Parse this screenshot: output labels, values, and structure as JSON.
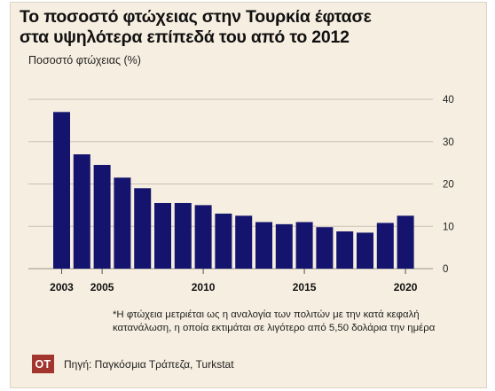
{
  "header": {
    "title_line1": "Το ποσοστό φτώχειας στην Τουρκία έφτασε",
    "title_line2": "στα υψηλότερα επίπεδά του από το 2012",
    "subtitle": "Ποσοστό φτώχειας (%)"
  },
  "footer": {
    "note_line1": "*Η φτώχεια μετριέται ως η αναλογία των πολιτών με την κατά κεφαλή",
    "note_line2": "κατανάλωση, η οποία εκτιμάται σε λιγότερο από 5,50 δολάρια την ημέρα",
    "logo": "OT",
    "source": "Πηγή: Παγκόσμια Τράπεζα, Turkstat"
  },
  "chart_data": {
    "type": "bar",
    "title": "Το ποσοστό φτώχειας στην Τουρκία έφτασε στα υψηλότερα επίπεδά του από το 2012",
    "ylabel": "Ποσοστό φτώχειας (%)",
    "categories": [
      "2003",
      "2004",
      "2005",
      "2006",
      "2007",
      "2008",
      "2009",
      "2010",
      "2011",
      "2012",
      "2013",
      "2014",
      "2015",
      "2016",
      "2017",
      "2018",
      "2019",
      "2020"
    ],
    "values": [
      37,
      27,
      24.5,
      21.5,
      19,
      15.5,
      15.5,
      15,
      13,
      12.5,
      11,
      10.5,
      11,
      9.8,
      8.8,
      8.5,
      10.8,
      12.5
    ],
    "x_tick_labels": [
      "2003",
      "2005",
      "2010",
      "2015",
      "2020"
    ],
    "y_ticks": [
      0,
      10,
      20,
      30,
      40
    ],
    "ylim": [
      0,
      40
    ],
    "grid": true,
    "bar_color": "#14146e"
  }
}
